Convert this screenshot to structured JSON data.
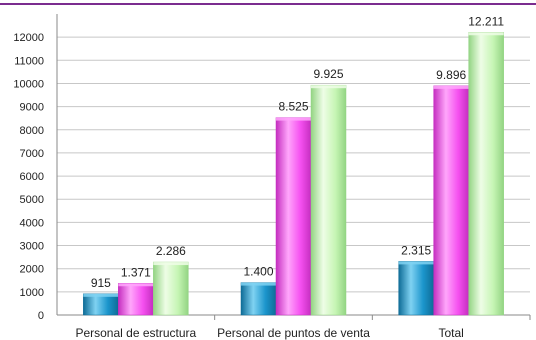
{
  "colors": {
    "top_rule": "#7b2c8f",
    "grid": "#c7c7c7",
    "axis": "#8a8a8a",
    "text": "#222222",
    "series": [
      "#1b95cc",
      "#f550f0",
      "#c6f5b4"
    ],
    "series_light": [
      "#7fd2f2",
      "#ffa6fb",
      "#eefde6"
    ],
    "series_dark": [
      "#0e6c97",
      "#c52ec0",
      "#93d483"
    ]
  },
  "chart_data": {
    "type": "bar",
    "categories": [
      "Personal de estructura",
      "Personal de puntos de venta",
      "Total"
    ],
    "series": [
      {
        "values": [
          915,
          1400,
          2315
        ],
        "labels": [
          "915",
          "1.400",
          "2.315"
        ]
      },
      {
        "values": [
          1371,
          8525,
          9896
        ],
        "labels": [
          "1.371",
          "8.525",
          "9.896"
        ]
      },
      {
        "values": [
          2286,
          9925,
          12211
        ],
        "labels": [
          "2.286",
          "9.925",
          "12.211"
        ]
      }
    ],
    "ylim": [
      0,
      13000
    ],
    "yticks": [
      0,
      1000,
      2000,
      3000,
      4000,
      5000,
      6000,
      7000,
      8000,
      9000,
      10000,
      11000,
      12000
    ],
    "grid": true,
    "legend": "none"
  }
}
